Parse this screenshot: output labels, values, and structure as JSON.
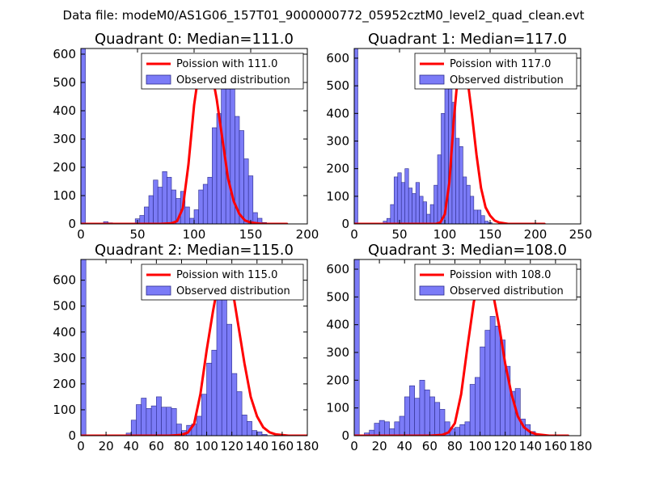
{
  "figure": {
    "suptitle": "Data file: modeM0/AS1G06_157T01_9000000772_05952cztM0_level2_quad_clean.evt"
  },
  "colors": {
    "hist_fill": "#7b7bf7",
    "hist_edge": "#2b2b8a",
    "poisson_line": "#ff0000",
    "axes": "#000000"
  },
  "chart_data": [
    {
      "type": "bar",
      "title": "Quadrant 0: Median=111.0",
      "xlim": [
        0,
        200
      ],
      "ylim": [
        0,
        620
      ],
      "xticks": [
        0,
        50,
        100,
        150,
        200
      ],
      "yticks": [
        0,
        100,
        200,
        300,
        400,
        500,
        600
      ],
      "legend": {
        "placement": "top-right",
        "line_label": "Poission with 111.0",
        "bar_label": "Observed distribution"
      },
      "histogram": {
        "bin_start": 0,
        "bin_width": 4,
        "values": [
          620,
          0,
          0,
          0,
          0,
          8,
          4,
          0,
          0,
          0,
          0,
          0,
          18,
          30,
          60,
          100,
          155,
          130,
          185,
          165,
          120,
          90,
          115,
          60,
          20,
          50,
          120,
          140,
          165,
          340,
          390,
          550,
          540,
          510,
          380,
          330,
          230,
          170,
          40,
          20,
          5,
          0,
          0,
          0,
          0,
          0,
          0,
          0,
          0,
          0
        ]
      },
      "poisson": {
        "x": [
          0,
          70,
          80,
          85,
          90,
          95,
          100,
          105,
          110,
          115,
          120,
          125,
          130,
          135,
          140,
          145,
          150,
          160,
          182
        ],
        "y": [
          0,
          0,
          2,
          10,
          55,
          210,
          420,
          560,
          585,
          550,
          440,
          300,
          160,
          80,
          35,
          12,
          5,
          0,
          0
        ]
      }
    },
    {
      "type": "bar",
      "title": "Quadrant 1: Median=117.0",
      "xlim": [
        0,
        250
      ],
      "ylim": [
        0,
        635
      ],
      "xticks": [
        0,
        50,
        100,
        150,
        200,
        250
      ],
      "yticks": [
        0,
        100,
        200,
        300,
        400,
        500,
        600
      ],
      "legend": {
        "placement": "top-right",
        "line_label": "Poission with 117.0",
        "bar_label": "Observed distribution"
      },
      "histogram": {
        "bin_start": 0,
        "bin_width": 4,
        "values": [
          635,
          0,
          0,
          0,
          0,
          0,
          0,
          0,
          10,
          20,
          70,
          170,
          185,
          150,
          200,
          130,
          110,
          150,
          100,
          80,
          35,
          70,
          140,
          250,
          400,
          590,
          610,
          440,
          310,
          280,
          170,
          140,
          100,
          50,
          50,
          30,
          10,
          5,
          0,
          0,
          0,
          0,
          0,
          0,
          0,
          0,
          0,
          0,
          0,
          0,
          0,
          0,
          0,
          0,
          0,
          0,
          0,
          0,
          0,
          0,
          0,
          0
        ]
      },
      "poisson": {
        "x": [
          0,
          80,
          90,
          95,
          100,
          105,
          110,
          115,
          120,
          125,
          130,
          135,
          140,
          145,
          150,
          155,
          160,
          170,
          180,
          210
        ],
        "y": [
          0,
          0,
          0,
          5,
          35,
          150,
          380,
          560,
          600,
          525,
          395,
          250,
          130,
          60,
          30,
          12,
          5,
          0,
          0,
          0
        ]
      }
    },
    {
      "type": "bar",
      "title": "Quadrant 2: Median=115.0",
      "xlim": [
        0,
        180
      ],
      "ylim": [
        0,
        680
      ],
      "xticks": [
        0,
        20,
        40,
        60,
        80,
        100,
        120,
        140,
        160,
        180
      ],
      "yticks": [
        0,
        100,
        200,
        300,
        400,
        500,
        600
      ],
      "legend": {
        "placement": "top-right",
        "line_label": "Poission with 115.0",
        "bar_label": "Observed distribution"
      },
      "histogram": {
        "bin_start": 0,
        "bin_width": 4,
        "values": [
          680,
          0,
          0,
          0,
          0,
          0,
          0,
          0,
          0,
          10,
          60,
          120,
          145,
          105,
          115,
          150,
          110,
          110,
          105,
          45,
          20,
          40,
          45,
          75,
          160,
          280,
          330,
          550,
          620,
          430,
          240,
          170,
          80,
          55,
          20,
          15,
          5,
          0,
          0,
          0,
          0,
          0,
          0,
          0,
          0
        ]
      },
      "poisson": {
        "x": [
          0,
          70,
          80,
          85,
          90,
          95,
          100,
          105,
          110,
          115,
          120,
          125,
          130,
          135,
          140,
          145,
          150,
          155,
          165,
          180
        ],
        "y": [
          0,
          0,
          3,
          12,
          45,
          160,
          330,
          480,
          610,
          645,
          580,
          430,
          280,
          150,
          75,
          32,
          13,
          5,
          0,
          0
        ]
      }
    },
    {
      "type": "bar",
      "title": "Quadrant 3: Median=108.0",
      "xlim": [
        0,
        180
      ],
      "ylim": [
        0,
        635
      ],
      "xticks": [
        0,
        20,
        40,
        60,
        80,
        100,
        120,
        140,
        160,
        180
      ],
      "yticks": [
        0,
        100,
        200,
        300,
        400,
        500,
        600
      ],
      "legend": {
        "placement": "top-right",
        "line_label": "Poission with 108.0",
        "bar_label": "Observed distribution"
      },
      "histogram": {
        "bin_start": 0,
        "bin_width": 4,
        "values": [
          635,
          0,
          10,
          20,
          45,
          55,
          50,
          25,
          50,
          70,
          140,
          180,
          135,
          200,
          165,
          140,
          120,
          95,
          50,
          25,
          30,
          40,
          50,
          185,
          210,
          320,
          380,
          430,
          395,
          345,
          250,
          160,
          170,
          60,
          40,
          15,
          5,
          5,
          0,
          0,
          0,
          0,
          0,
          0,
          0
        ]
      },
      "poisson": {
        "x": [
          0,
          60,
          70,
          75,
          80,
          85,
          90,
          95,
          100,
          105,
          110,
          115,
          120,
          125,
          130,
          135,
          140,
          145,
          155,
          170
        ],
        "y": [
          0,
          0,
          3,
          12,
          45,
          150,
          320,
          480,
          590,
          600,
          520,
          400,
          260,
          150,
          70,
          30,
          13,
          5,
          0,
          0
        ]
      }
    }
  ]
}
